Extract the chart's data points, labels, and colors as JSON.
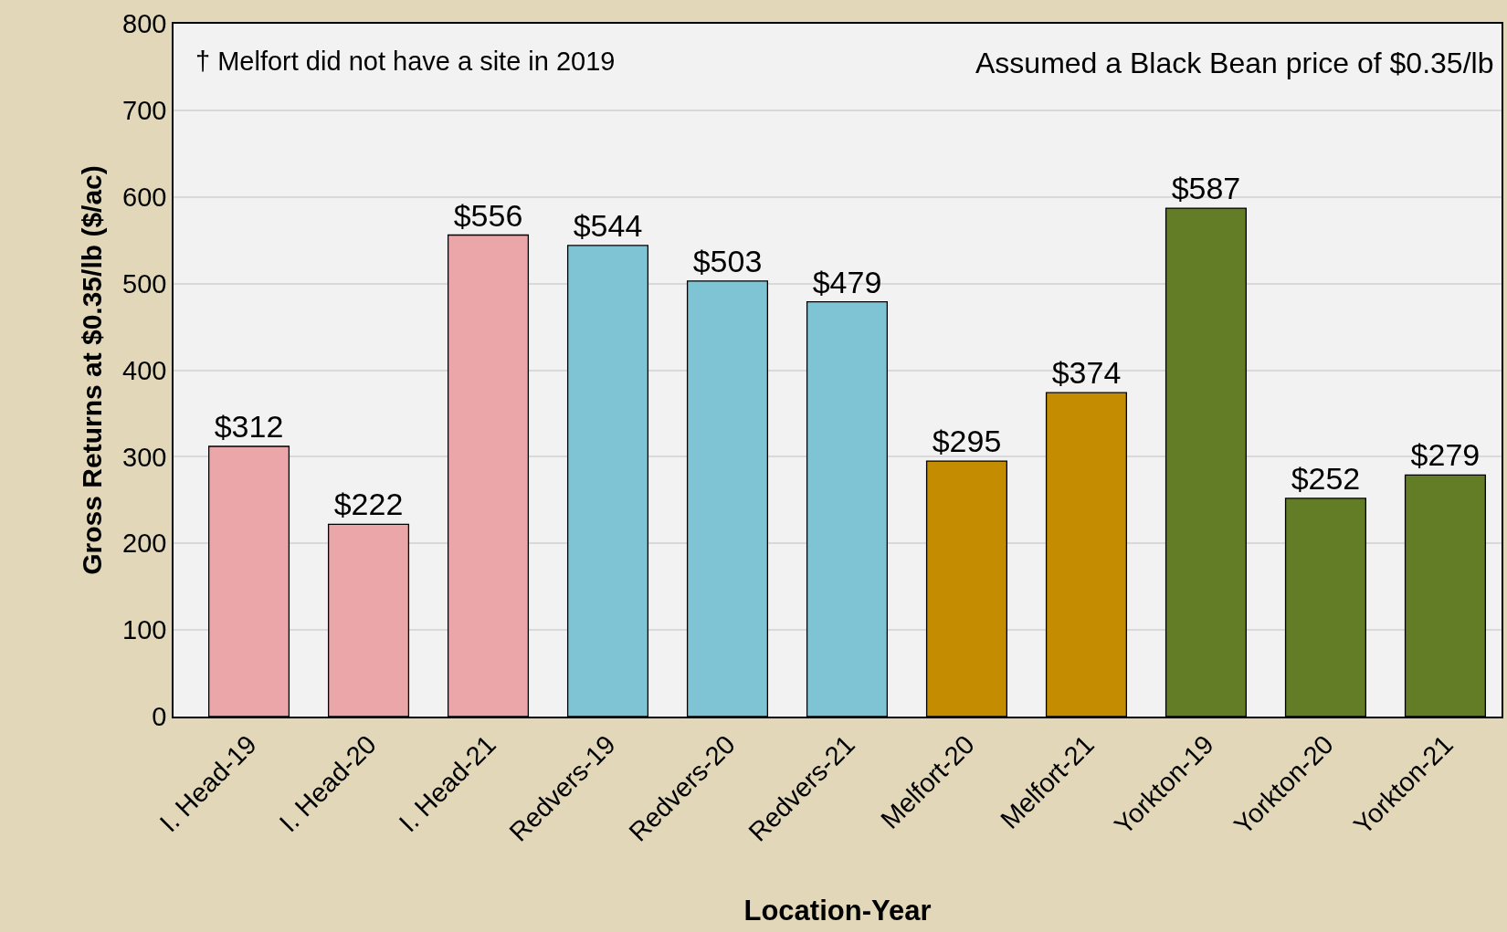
{
  "chart_data": {
    "type": "bar",
    "xlabel": "Location-Year",
    "ylabel": "Gross Returns at $0.35/lb ($/ac)",
    "categories": [
      "I. Head-19",
      "I. Head-20",
      "I. Head-21",
      "Redvers-19",
      "Redvers-20",
      "Redvers-21",
      "Melfort-20",
      "Melfort-21",
      "Yorkton-19",
      "Yorkton-20",
      "Yorkton-21"
    ],
    "values": [
      312,
      222,
      556,
      544,
      503,
      479,
      295,
      374,
      587,
      252,
      279
    ],
    "colors": [
      "#eaa6a8",
      "#eaa6a8",
      "#eaa6a8",
      "#7fc4d4",
      "#7fc4d4",
      "#7fc4d4",
      "#c48c00",
      "#c48c00",
      "#627d26",
      "#627d26",
      "#627d26"
    ],
    "value_labels": [
      "$312",
      "$222",
      "$556",
      "$544",
      "$503",
      "$479",
      "$295",
      "$374",
      "$587",
      "$252",
      "$279"
    ],
    "ylim": [
      0,
      800
    ],
    "yticks": [
      0,
      100,
      200,
      300,
      400,
      500,
      600,
      700,
      800
    ],
    "grid": "y",
    "annotations": [
      "† Melfort did not have a site in 2019",
      "Assumed a Black Bean price of $0.35/lb"
    ]
  }
}
